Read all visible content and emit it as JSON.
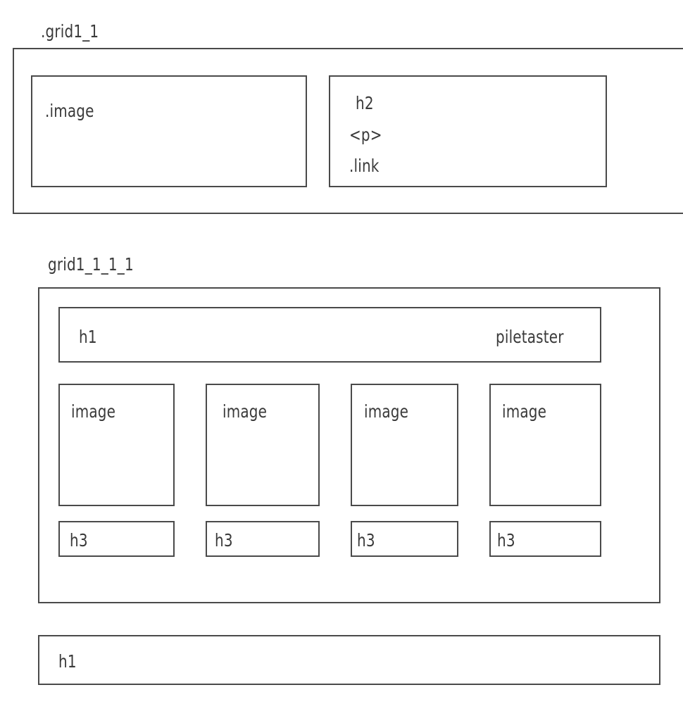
{
  "section1": {
    "title": ".grid1_1",
    "image_box": {
      "label": ".image"
    },
    "text_box": {
      "lines": [
        "h2",
        "<p>",
        ".link"
      ]
    }
  },
  "section2": {
    "title": "grid1_1_1_1",
    "header": {
      "left": "h1",
      "right": "piletaster"
    },
    "cards": [
      {
        "image_label": "image",
        "caption": "h3"
      },
      {
        "image_label": "image",
        "caption": "h3"
      },
      {
        "image_label": "image",
        "caption": "h3"
      },
      {
        "image_label": "image",
        "caption": "h3"
      }
    ]
  },
  "footer": {
    "label": "h1"
  }
}
